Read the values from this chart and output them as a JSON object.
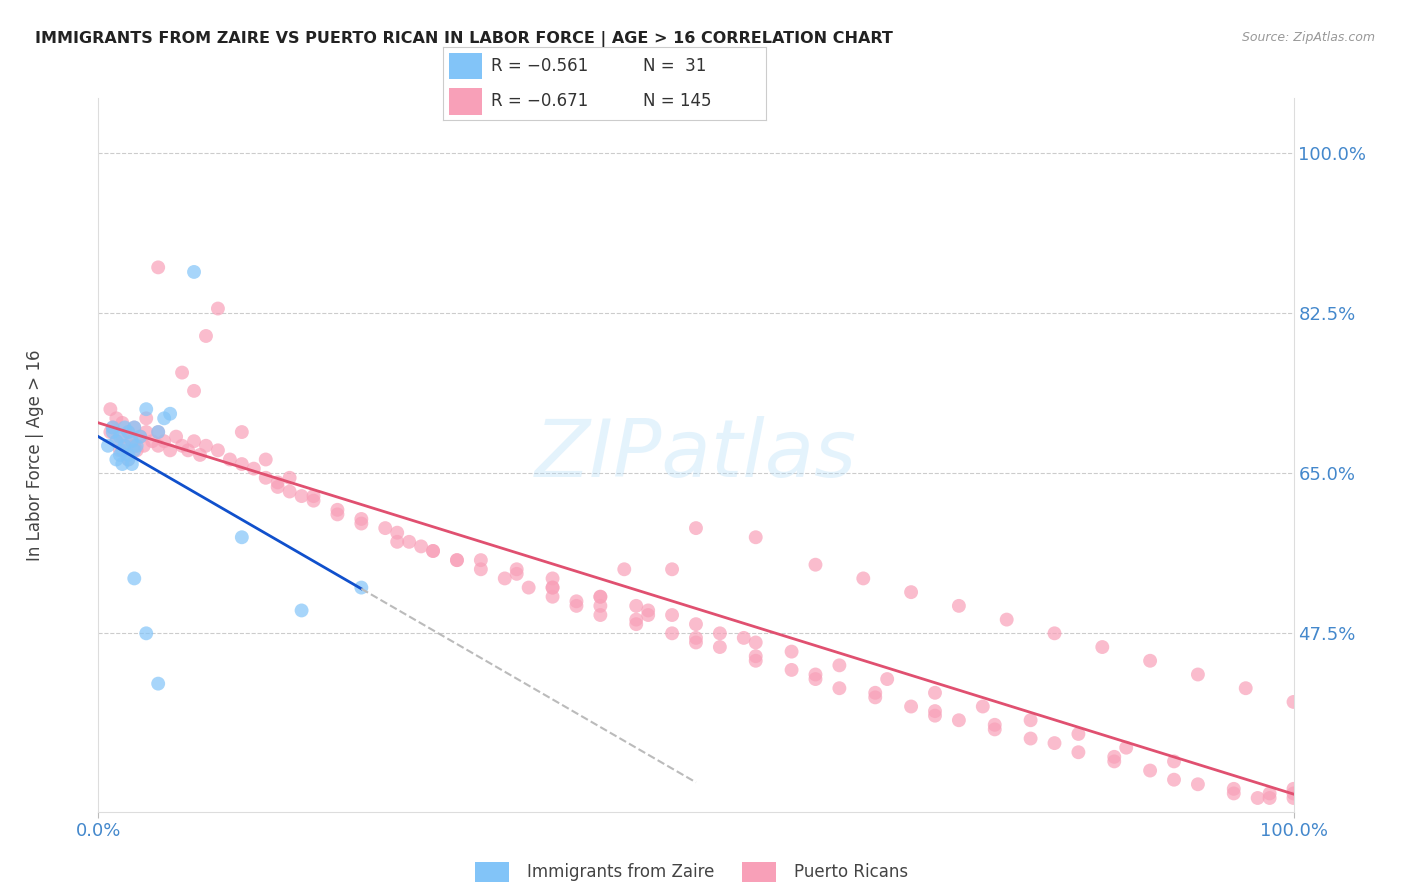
{
  "title": "IMMIGRANTS FROM ZAIRE VS PUERTO RICAN IN LABOR FORCE | AGE > 16 CORRELATION CHART",
  "source": "Source: ZipAtlas.com",
  "ylabel": "In Labor Force | Age > 16",
  "ytick_labels": [
    "100.0%",
    "82.5%",
    "65.0%",
    "47.5%"
  ],
  "ytick_values": [
    1.0,
    0.825,
    0.65,
    0.475
  ],
  "xlim": [
    0.0,
    1.0
  ],
  "ylim": [
    0.28,
    1.06
  ],
  "color_blue": "#82C4F8",
  "color_pink": "#F8A0B8",
  "color_blue_line": "#1050CC",
  "color_pink_line": "#E05070",
  "color_axis_labels": "#4488CC",
  "background": "#FFFFFF",
  "zaire_x": [
    0.008,
    0.012,
    0.012,
    0.015,
    0.015,
    0.018,
    0.018,
    0.02,
    0.02,
    0.022,
    0.022,
    0.025,
    0.025,
    0.025,
    0.028,
    0.028,
    0.03,
    0.03,
    0.032,
    0.035,
    0.04,
    0.05,
    0.055,
    0.06,
    0.08,
    0.12,
    0.17,
    0.22,
    0.03,
    0.04,
    0.05
  ],
  "zaire_y": [
    0.68,
    0.695,
    0.7,
    0.685,
    0.665,
    0.67,
    0.69,
    0.66,
    0.675,
    0.68,
    0.7,
    0.665,
    0.67,
    0.695,
    0.685,
    0.66,
    0.675,
    0.7,
    0.68,
    0.69,
    0.72,
    0.695,
    0.71,
    0.715,
    0.87,
    0.58,
    0.5,
    0.525,
    0.535,
    0.475,
    0.42
  ],
  "pr_x": [
    0.01,
    0.01,
    0.012,
    0.015,
    0.015,
    0.018,
    0.02,
    0.02,
    0.022,
    0.025,
    0.025,
    0.028,
    0.03,
    0.03,
    0.032,
    0.035,
    0.038,
    0.04,
    0.04,
    0.045,
    0.05,
    0.05,
    0.055,
    0.06,
    0.065,
    0.07,
    0.075,
    0.08,
    0.085,
    0.09,
    0.1,
    0.11,
    0.12,
    0.13,
    0.14,
    0.15,
    0.15,
    0.16,
    0.17,
    0.18,
    0.2,
    0.22,
    0.24,
    0.25,
    0.27,
    0.28,
    0.3,
    0.32,
    0.34,
    0.36,
    0.38,
    0.4,
    0.4,
    0.42,
    0.45,
    0.45,
    0.48,
    0.5,
    0.5,
    0.52,
    0.55,
    0.55,
    0.58,
    0.6,
    0.6,
    0.62,
    0.65,
    0.65,
    0.68,
    0.7,
    0.7,
    0.72,
    0.75,
    0.75,
    0.78,
    0.8,
    0.82,
    0.85,
    0.85,
    0.88,
    0.9,
    0.92,
    0.95,
    0.95,
    0.97,
    0.98,
    0.98,
    1.0,
    1.0,
    1.0,
    0.38,
    0.42,
    0.45,
    0.48,
    0.52,
    0.55,
    0.07,
    0.08,
    0.09,
    0.1,
    0.12,
    0.14,
    0.16,
    0.18,
    0.2,
    0.35,
    0.38,
    0.42,
    0.46,
    0.5,
    0.54,
    0.58,
    0.62,
    0.66,
    0.7,
    0.74,
    0.78,
    0.82,
    0.86,
    0.9,
    0.05,
    0.55,
    0.5,
    0.48,
    0.44,
    0.6,
    0.64,
    0.68,
    0.72,
    0.76,
    0.8,
    0.84,
    0.88,
    0.92,
    0.96,
    1.0,
    0.38,
    0.25,
    0.32,
    0.42,
    0.46,
    0.35,
    0.3,
    0.28,
    0.26,
    0.22
  ],
  "pr_y": [
    0.695,
    0.72,
    0.7,
    0.685,
    0.71,
    0.675,
    0.69,
    0.705,
    0.68,
    0.695,
    0.665,
    0.685,
    0.68,
    0.7,
    0.675,
    0.69,
    0.68,
    0.695,
    0.71,
    0.685,
    0.68,
    0.695,
    0.685,
    0.675,
    0.69,
    0.68,
    0.675,
    0.685,
    0.67,
    0.68,
    0.675,
    0.665,
    0.66,
    0.655,
    0.645,
    0.635,
    0.64,
    0.63,
    0.625,
    0.62,
    0.61,
    0.6,
    0.59,
    0.585,
    0.57,
    0.565,
    0.555,
    0.545,
    0.535,
    0.525,
    0.515,
    0.51,
    0.505,
    0.495,
    0.485,
    0.49,
    0.475,
    0.465,
    0.47,
    0.46,
    0.445,
    0.45,
    0.435,
    0.43,
    0.425,
    0.415,
    0.405,
    0.41,
    0.395,
    0.385,
    0.39,
    0.38,
    0.37,
    0.375,
    0.36,
    0.355,
    0.345,
    0.335,
    0.34,
    0.325,
    0.315,
    0.31,
    0.3,
    0.305,
    0.295,
    0.295,
    0.3,
    0.295,
    0.3,
    0.305,
    0.525,
    0.515,
    0.505,
    0.495,
    0.475,
    0.465,
    0.76,
    0.74,
    0.8,
    0.83,
    0.695,
    0.665,
    0.645,
    0.625,
    0.605,
    0.545,
    0.535,
    0.515,
    0.5,
    0.485,
    0.47,
    0.455,
    0.44,
    0.425,
    0.41,
    0.395,
    0.38,
    0.365,
    0.35,
    0.335,
    0.875,
    0.58,
    0.59,
    0.545,
    0.545,
    0.55,
    0.535,
    0.52,
    0.505,
    0.49,
    0.475,
    0.46,
    0.445,
    0.43,
    0.415,
    0.4,
    0.525,
    0.575,
    0.555,
    0.505,
    0.495,
    0.54,
    0.555,
    0.565,
    0.575,
    0.595
  ]
}
